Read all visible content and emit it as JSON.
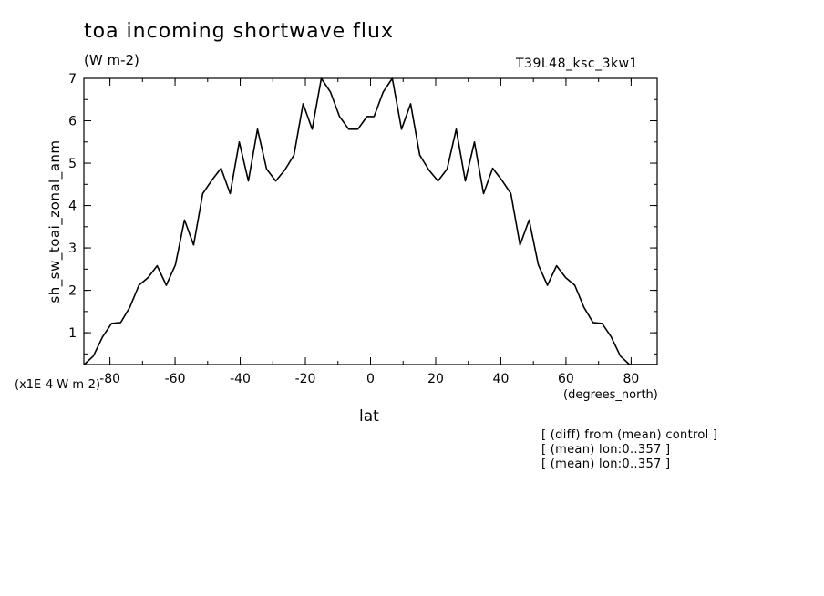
{
  "chart_data": {
    "type": "line",
    "title": "toa incoming shortwave flux",
    "units_label": "(W m-2)",
    "run_id": "T39L48_ksc_3kw1",
    "ylabel": "sh_sw_toai_zonal_anm",
    "xlabel": "lat",
    "x_units": "(degrees_north)",
    "y_scale_note": "(x1E-4 W m-2)",
    "notes": [
      "[ (diff) from (mean) control ]",
      "[ (mean) lon:0..357 ]",
      "[ (mean) lon:0..357 ]"
    ],
    "xlim": [
      -88,
      88
    ],
    "ylim": [
      0.25,
      7
    ],
    "x_ticks": [
      -80,
      -60,
      -40,
      -20,
      0,
      20,
      40,
      60,
      80
    ],
    "y_ticks": [
      1,
      2,
      3,
      4,
      5,
      6,
      7
    ],
    "grid": false,
    "color": "#000000",
    "series": [
      {
        "x": [
          -87.9,
          -85.1,
          -82.3,
          -79.5,
          -76.7,
          -73.9,
          -71.1,
          -68.3,
          -65.5,
          -62.7,
          -59.9,
          -57.1,
          -54.3,
          -51.5,
          -48.7,
          -45.9,
          -43.1,
          -40.3,
          -37.5,
          -34.7,
          -31.9,
          -29.1,
          -26.3,
          -23.5,
          -20.7,
          -17.9,
          -15.1,
          -12.3,
          -9.5,
          -6.7,
          -3.9,
          -1.1,
          1.1,
          3.9,
          6.7,
          9.5,
          12.3,
          15.1,
          17.9,
          20.7,
          23.5,
          26.3,
          29.1,
          31.9,
          34.7,
          37.5,
          40.3,
          43.1,
          45.9,
          48.7,
          51.5,
          54.3,
          57.1,
          59.9,
          62.7,
          65.5,
          68.3,
          71.1,
          73.9,
          76.7,
          79.5,
          82.3,
          85.1,
          87.9
        ],
        "y": [
          0.25,
          0.45,
          0.9,
          1.22,
          1.24,
          1.6,
          2.12,
          2.3,
          2.58,
          2.12,
          2.6,
          3.66,
          3.07,
          4.28,
          4.6,
          4.88,
          4.28,
          5.5,
          4.58,
          5.8,
          4.86,
          4.58,
          4.84,
          5.19,
          6.4,
          5.8,
          7.0,
          6.68,
          6.1,
          5.8,
          5.8,
          6.1,
          6.1,
          6.68,
          7.0,
          5.8,
          6.4,
          5.19,
          4.84,
          4.58,
          4.86,
          5.8,
          4.58,
          5.5,
          4.28,
          4.88,
          4.6,
          4.28,
          3.07,
          3.66,
          2.6,
          2.12,
          2.58,
          2.3,
          2.12,
          1.6,
          1.24,
          1.22,
          0.9,
          0.45,
          0.25,
          0.25,
          0.25,
          0.25
        ]
      }
    ]
  }
}
